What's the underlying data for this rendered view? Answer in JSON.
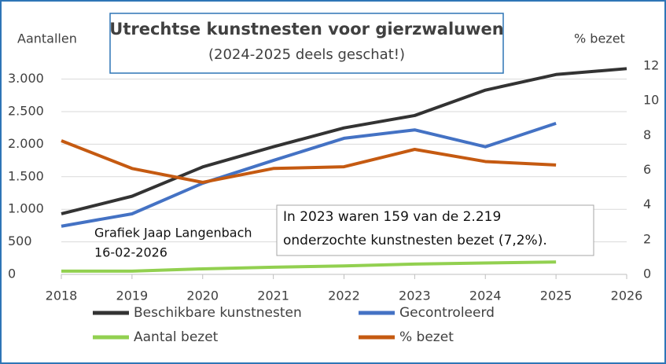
{
  "chart_data": {
    "type": "line",
    "title": "Utrechtse kunstnesten voor gierzwaluwen",
    "subtitle": "(2024-2025 deels geschat!)",
    "y_label": "Aantallen",
    "y2_label": "% bezet",
    "annotation": [
      "In 2023 waren 159 van de 2.219",
      "onderzochte kunstnesten bezet (7,2%)."
    ],
    "credit": [
      "Grafiek Jaap Langenbach",
      "16-02-2026"
    ],
    "x": [
      2018,
      2019,
      2020,
      2021,
      2022,
      2023,
      2024,
      2025,
      2026
    ],
    "xlim": [
      2018,
      2026
    ],
    "xticks": [
      2018,
      2019,
      2020,
      2021,
      2022,
      2023,
      2024,
      2025,
      2026
    ],
    "ylim": [
      0,
      3200
    ],
    "yticks": [
      0,
      500,
      {
        "value": 1000,
        "label": "1.000"
      },
      {
        "value": 1500,
        "label": "1.500"
      },
      {
        "value": 2000,
        "label": "2.000"
      },
      {
        "value": 2500,
        "label": "2.500"
      },
      {
        "value": 3000,
        "label": "3.000"
      }
    ],
    "y2lim": [
      0,
      12
    ],
    "y2ticks": [
      0,
      2,
      4,
      6,
      8,
      10,
      12
    ],
    "series": [
      {
        "name": "Beschikbare kunstnesten",
        "color": "#333333",
        "values": [
          930,
          1200,
          1650,
          1960,
          2250,
          2440,
          2830,
          3070,
          3160
        ]
      },
      {
        "name": "Gecontroleerd",
        "color": "#4472c4",
        "values": [
          740,
          930,
          1400,
          1750,
          2090,
          2219,
          1960,
          2320,
          null
        ]
      },
      {
        "name": "Aantal bezet",
        "color": "#92d050",
        "values": [
          50,
          50,
          85,
          110,
          130,
          159,
          175,
          190,
          null
        ]
      },
      {
        "name": "% bezet",
        "color": "#c55a11",
        "axis": "y2",
        "values": [
          7.7,
          6.1,
          5.3,
          6.1,
          6.2,
          7.2,
          6.5,
          6.3,
          null
        ]
      }
    ]
  }
}
